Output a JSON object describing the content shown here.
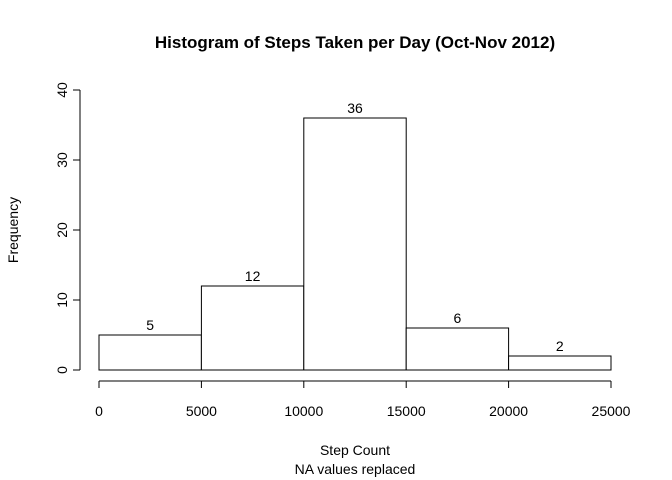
{
  "chart_data": {
    "type": "bar",
    "title": "Histogram of Steps Taken per Day (Oct-Nov 2012)",
    "xlabel": "Step Count",
    "xlabel_sub": "NA values replaced",
    "ylabel": "Frequency",
    "bins": [
      {
        "start": 0,
        "end": 5000,
        "count": 5
      },
      {
        "start": 5000,
        "end": 10000,
        "count": 12
      },
      {
        "start": 10000,
        "end": 15000,
        "count": 36
      },
      {
        "start": 15000,
        "end": 20000,
        "count": 6
      },
      {
        "start": 20000,
        "end": 25000,
        "count": 2
      }
    ],
    "values": [
      5,
      12,
      36,
      6,
      2
    ],
    "xlim": [
      0,
      25000
    ],
    "ylim": [
      0,
      40
    ],
    "xticks": [
      "0",
      "5000",
      "10000",
      "15000",
      "20000",
      "25000"
    ],
    "yticks": [
      "0",
      "10",
      "20",
      "30",
      "40"
    ],
    "grid": false,
    "bar_fill": "#ffffff",
    "bar_stroke": "#000000"
  }
}
